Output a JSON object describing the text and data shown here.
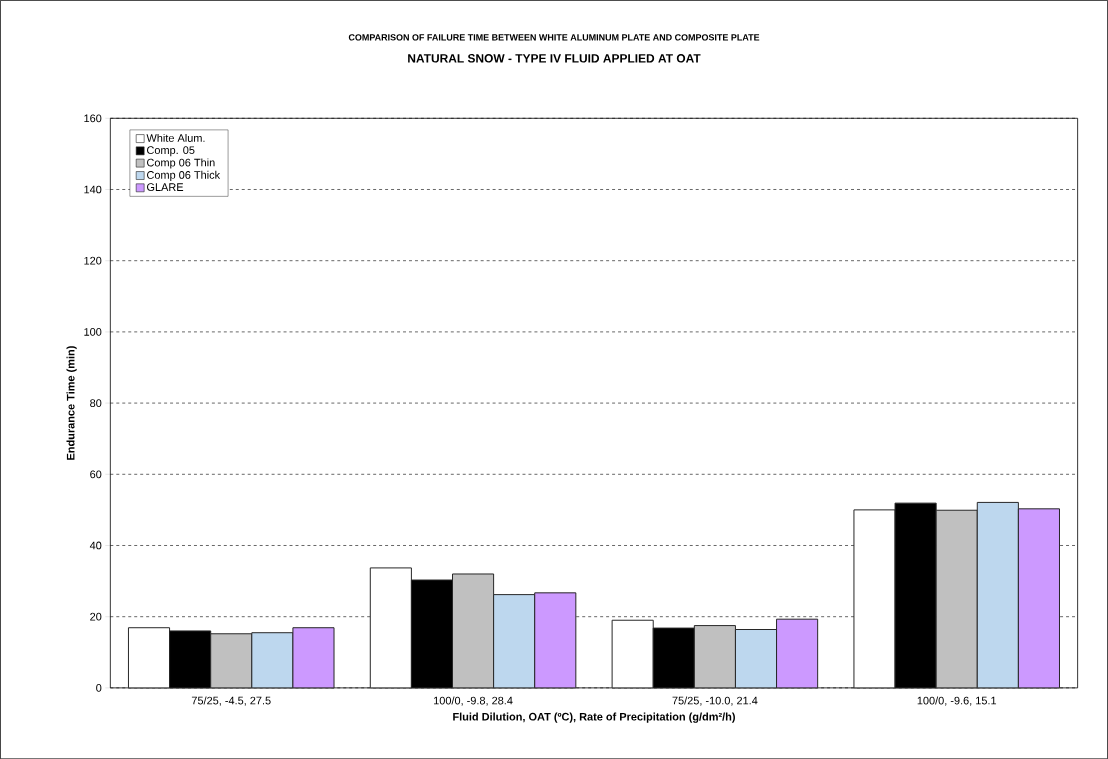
{
  "chart_data": {
    "type": "bar",
    "title": "COMPARISON OF FAILURE TIME BETWEEN WHITE ALUMINUM PLATE AND COMPOSITE PLATE",
    "subtitle": "NATURAL SNOW - TYPE IV FLUID APPLIED AT OAT",
    "xlabel": "Fluid Dilution, OAT (ºC), Rate of Precipitation (g/dm²/h)",
    "ylabel": "Endurance Time (min)",
    "categories": [
      "75/25, -4.5, 27.5",
      "100/0, -9.8, 28.4",
      "75/25, -10.0, 21.4",
      "100/0, -9.6, 15.1"
    ],
    "series": [
      {
        "name": "White Alum.",
        "color": "#ffffff",
        "values": [
          16.9,
          33.7,
          19.0,
          50.0
        ]
      },
      {
        "name": "Comp. 05",
        "color": "#000000",
        "values": [
          16.0,
          30.3,
          16.8,
          51.9
        ]
      },
      {
        "name": "Comp 06 Thin",
        "color": "#c0c0c0",
        "values": [
          15.2,
          32.0,
          17.5,
          49.9
        ]
      },
      {
        "name": "Comp 06 Thick",
        "color": "#bdd7ee",
        "values": [
          15.5,
          26.2,
          16.4,
          52.1
        ]
      },
      {
        "name": "GLARE",
        "color": "#cc99ff",
        "values": [
          16.9,
          26.7,
          19.3,
          50.3
        ]
      }
    ],
    "ylim": [
      0,
      160
    ],
    "yticks": [
      0,
      20,
      40,
      60,
      80,
      100,
      120,
      140,
      160
    ],
    "grid": "y",
    "legend": "top left"
  }
}
